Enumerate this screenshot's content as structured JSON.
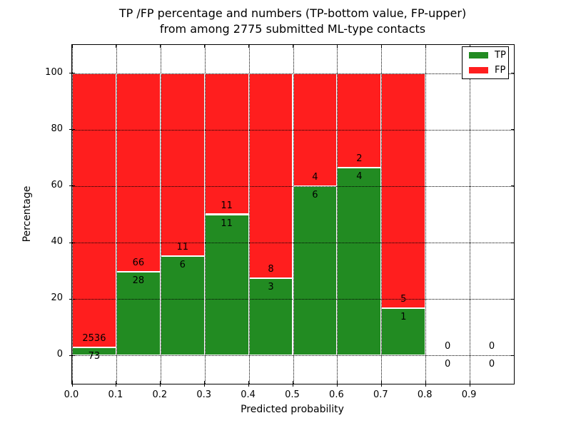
{
  "title": {
    "line1": "TP /FP percentage and numbers (TP-bottom value, FP-upper)",
    "line2": "from among 2775 submitted ML-type contacts"
  },
  "chart_data": {
    "type": "bar",
    "stacked": true,
    "total_contacts": 2775,
    "xlabel": "Predicted probability",
    "ylabel": "Percentage",
    "xlim": [
      0.0,
      1.0
    ],
    "ylim": [
      -10,
      110
    ],
    "x_ticks": [
      0.0,
      0.1,
      0.2,
      0.3,
      0.4,
      0.5,
      0.6,
      0.7,
      0.8,
      0.9
    ],
    "y_ticks": [
      0,
      20,
      40,
      60,
      80,
      100
    ],
    "grid": "dotted",
    "bar_unit": "percent of bin, TP bottom + FP top = 100",
    "bins": [
      {
        "range": [
          0.0,
          0.1
        ],
        "tp": 73,
        "fp": 2536
      },
      {
        "range": [
          0.1,
          0.2
        ],
        "tp": 28,
        "fp": 66
      },
      {
        "range": [
          0.2,
          0.3
        ],
        "tp": 6,
        "fp": 11
      },
      {
        "range": [
          0.3,
          0.4
        ],
        "tp": 11,
        "fp": 11
      },
      {
        "range": [
          0.4,
          0.5
        ],
        "tp": 3,
        "fp": 8
      },
      {
        "range": [
          0.5,
          0.6
        ],
        "tp": 6,
        "fp": 4
      },
      {
        "range": [
          0.6,
          0.7
        ],
        "tp": 4,
        "fp": 2
      },
      {
        "range": [
          0.7,
          0.8
        ],
        "tp": 1,
        "fp": 5
      },
      {
        "range": [
          0.8,
          0.9
        ],
        "tp": 0,
        "fp": 0
      },
      {
        "range": [
          0.9,
          1.0
        ],
        "tp": 0,
        "fp": 0
      }
    ],
    "legend": {
      "position": "upper right",
      "entries": [
        {
          "name": "TP",
          "color": "#228B22"
        },
        {
          "name": "FP",
          "color": "#FF1E1E"
        }
      ]
    },
    "colors": {
      "tp": "#228B22",
      "fp": "#FF1E1E",
      "grid": "#000000",
      "background": "#ffffff"
    }
  }
}
